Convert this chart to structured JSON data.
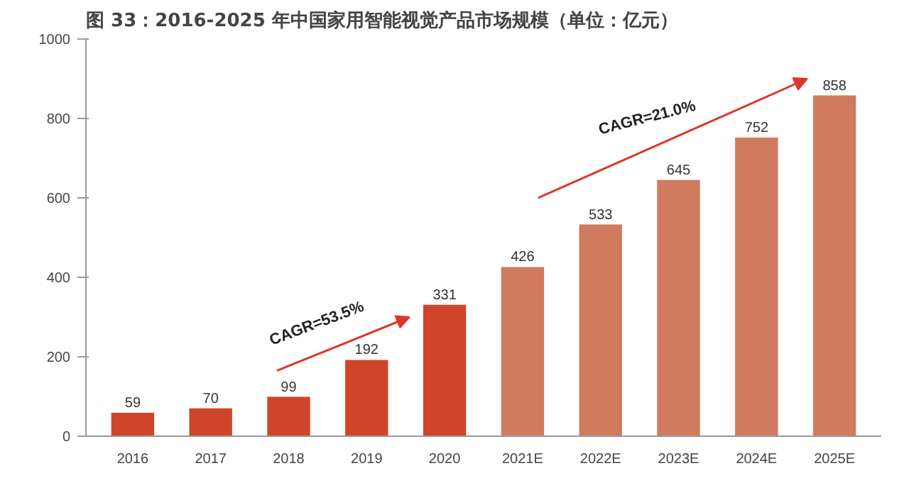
{
  "chart_data": {
    "type": "bar",
    "title": "图 33：2016-2025 年中国家用智能视觉产品市场规模（单位：亿元）",
    "categories": [
      "2016",
      "2017",
      "2018",
      "2019",
      "2020",
      "2021E",
      "2022E",
      "2023E",
      "2024E",
      "2025E"
    ],
    "values": [
      59,
      70,
      99,
      192,
      331,
      426,
      533,
      645,
      752,
      858
    ],
    "colors": [
      "#d0452a",
      "#d0452a",
      "#d0452a",
      "#d0452a",
      "#d0452a",
      "#d07a5e",
      "#d07a5e",
      "#d07a5e",
      "#d07a5e",
      "#d07a5e"
    ],
    "ylim": [
      0,
      1000
    ],
    "yticks": [
      0,
      200,
      400,
      600,
      800,
      1000
    ],
    "grid": false,
    "data_labels": true,
    "annotations": [
      "CAGR=53.5%",
      "CAGR=21.0%"
    ]
  }
}
